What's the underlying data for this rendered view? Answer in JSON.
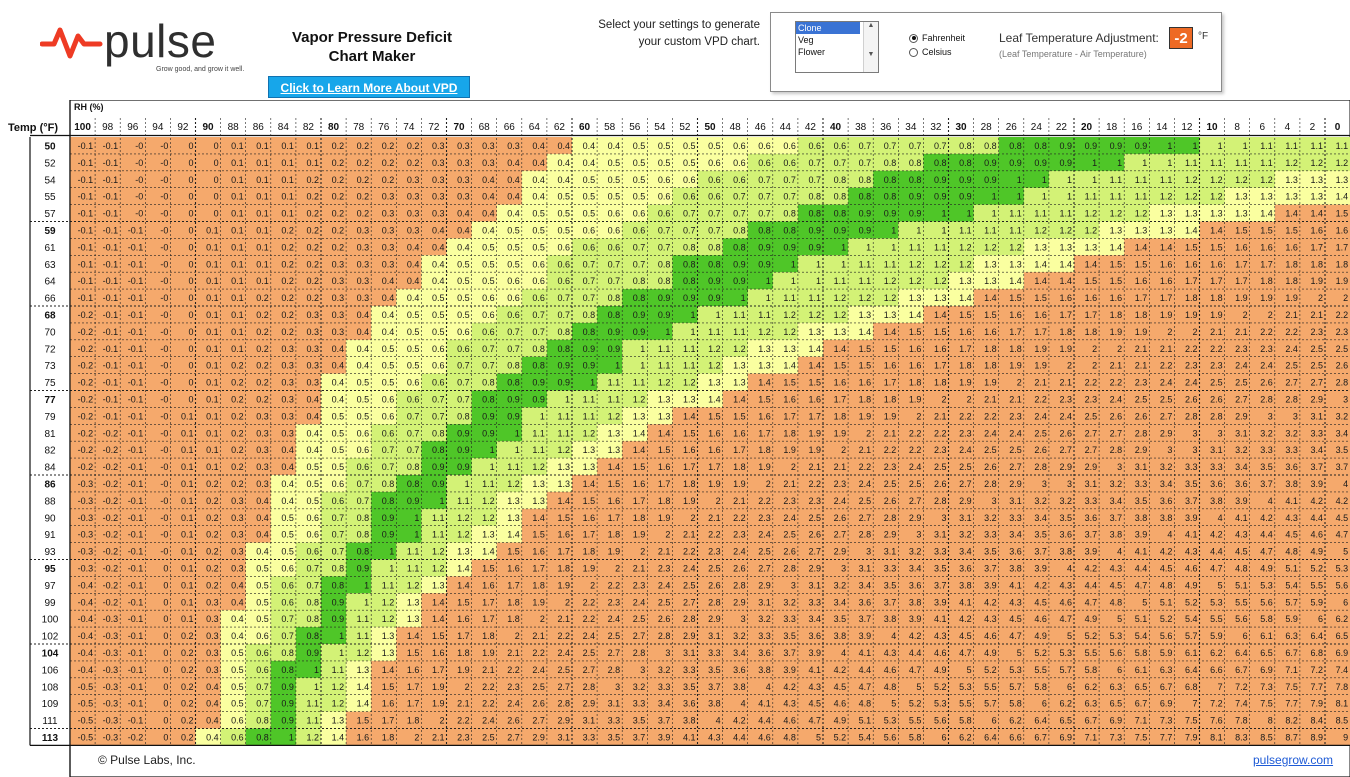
{
  "brand": {
    "name": "pulse",
    "tagline": "Grow good, and grow it well."
  },
  "title_line1": "Vapor Pressure Deficit",
  "title_line2": "Chart Maker",
  "learn_button": "Click to Learn More About VPD",
  "prompt_line1": "Select your settings to generate",
  "prompt_line2": "your custom VPD chart.",
  "settings": {
    "stages": [
      "Clone",
      "Veg",
      "Flower"
    ],
    "selected_stage": "Clone",
    "units": [
      "Fahrenheit",
      "Celsius"
    ],
    "selected_unit": "Fahrenheit",
    "adjust_label": "Leaf Temperature Adjustment:",
    "adjust_value": "-2",
    "adjust_unit": "°F",
    "adjust_note": "(Leaf Temperature - Air Temperature)"
  },
  "colors": {
    "orange": "#f5a96c",
    "lightyellow": "#faffa0",
    "yellowgreen": "#d3f276",
    "green": "#4fc628",
    "accent": "#ee6a24",
    "link": "#1e5bd6"
  },
  "chart_data": {
    "type": "heatmap",
    "title": "Vapor Pressure Deficit Chart Maker",
    "xlabel": "RH (%)",
    "ylabel": "Temp (°F)",
    "rh": [
      100,
      98,
      96,
      94,
      92,
      90,
      88,
      86,
      84,
      82,
      80,
      78,
      76,
      74,
      72,
      70,
      68,
      66,
      64,
      62,
      60,
      58,
      56,
      54,
      52,
      50,
      48,
      46,
      44,
      42,
      40,
      38,
      36,
      34,
      32,
      30,
      28,
      26,
      24,
      22,
      20,
      18,
      16,
      14,
      12,
      10,
      8,
      6,
      4,
      2,
      0
    ],
    "temps": [
      50,
      52,
      54,
      55,
      57,
      59,
      61,
      63,
      64,
      66,
      68,
      70,
      72,
      73,
      75,
      77,
      79,
      81,
      82,
      84,
      86,
      88,
      90,
      91,
      93,
      95,
      97,
      99,
      100,
      102,
      104,
      106,
      108,
      109,
      111,
      113
    ],
    "bold_temps": [
      50,
      59,
      68,
      77,
      86,
      95,
      104,
      113
    ],
    "bold_rh": [
      100,
      90,
      80,
      70,
      60,
      50,
      40,
      30,
      20,
      10,
      0
    ],
    "cell_values": "computed from temperature, RH and a -2 °F leaf temperature adjustment; shown rounded to 0.1 kPa",
    "color_bands": [
      {
        "range": "below 0.40",
        "color": "orange"
      },
      {
        "range": "0.40 - 0.59",
        "color": "lightyellow"
      },
      {
        "range": "0.60 - 0.79",
        "color": "yellowgreen"
      },
      {
        "range": "0.80 - 1.00",
        "color": "green"
      },
      {
        "range": "1.00 - 1.25",
        "color": "yellowgreen"
      },
      {
        "range": "1.25 - 1.40",
        "color": "lightyellow"
      },
      {
        "range": "above 1.40",
        "color": "orange"
      }
    ]
  },
  "footer": {
    "copyright": "© Pulse Labs, Inc.",
    "link": "pulsegrow.com"
  }
}
